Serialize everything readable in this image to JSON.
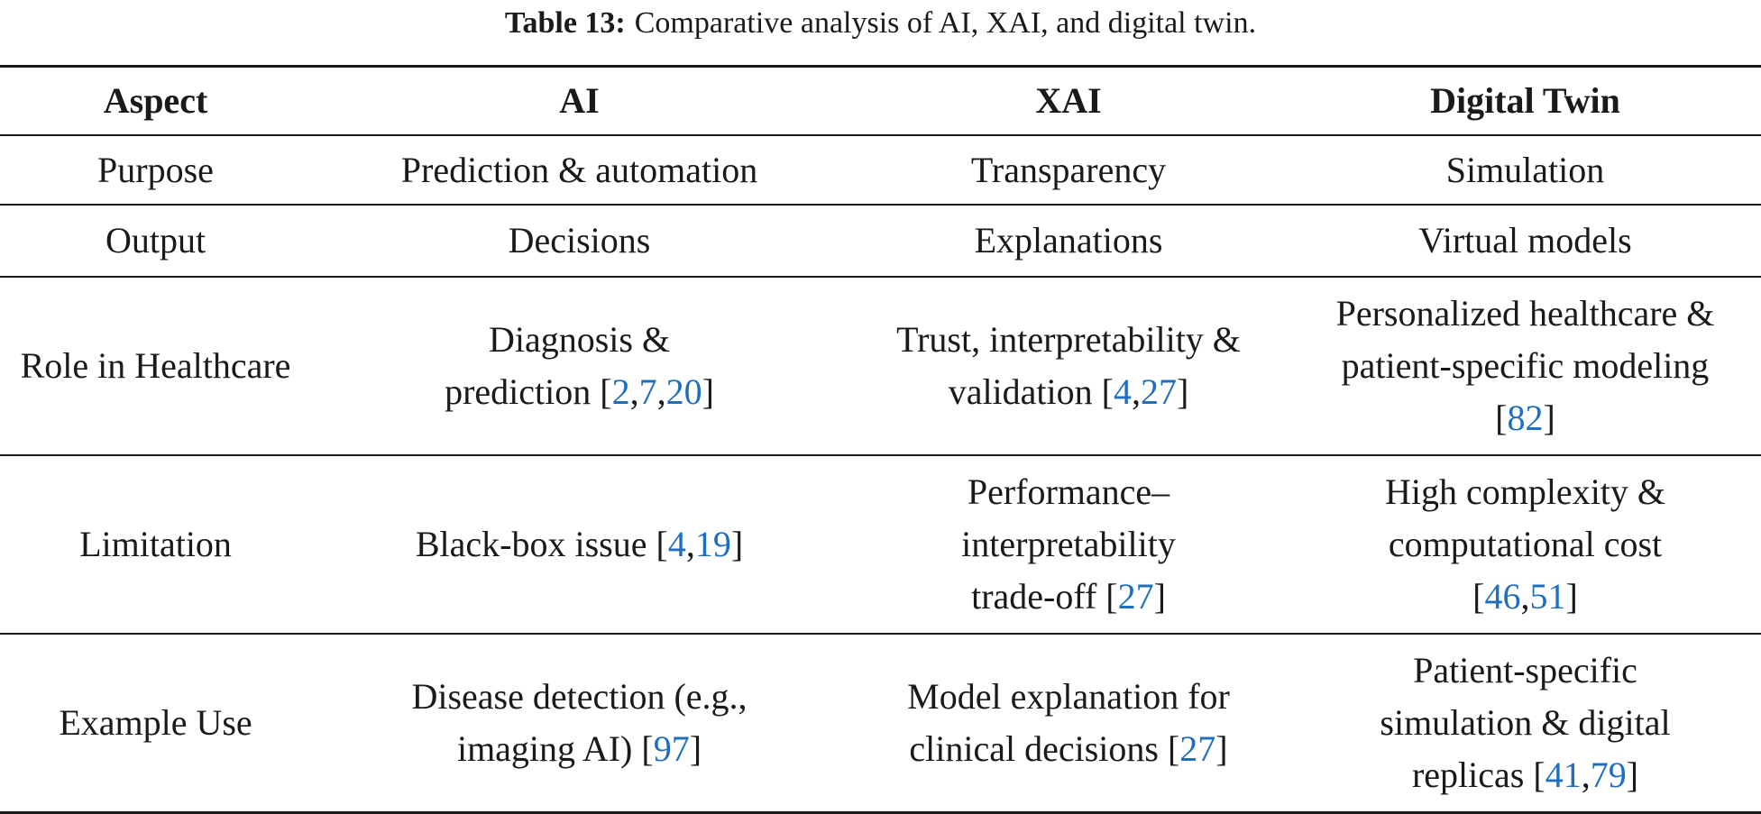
{
  "caption": {
    "label": "Table 13:",
    "text": "Comparative analysis of AI, XAI, and digital twin."
  },
  "colors": {
    "text": "#1a1a1a",
    "reference_link": "#1f6fc0"
  },
  "table": {
    "headers": [
      "Aspect",
      "AI",
      "XAI",
      "Digital Twin"
    ],
    "rows": [
      {
        "aspect": "Purpose",
        "ai": {
          "text": "Prediction & automation",
          "refs": []
        },
        "xai": {
          "text": "Transparency",
          "refs": []
        },
        "dt": {
          "text": "Simulation",
          "refs": []
        }
      },
      {
        "aspect": "Output",
        "ai": {
          "text": "Decisions",
          "refs": []
        },
        "xai": {
          "text": "Explanations",
          "refs": []
        },
        "dt": {
          "text": "Virtual models",
          "refs": []
        }
      },
      {
        "aspect": "Role in Healthcare",
        "ai": {
          "text": "Diagnosis & prediction",
          "refs": [
            "2",
            "7",
            "20"
          ]
        },
        "xai": {
          "text": "Trust, interpretability & validation",
          "refs": [
            "4",
            "27"
          ]
        },
        "dt": {
          "text": "Personalized healthcare & patient-specific modeling",
          "refs": [
            "82"
          ]
        }
      },
      {
        "aspect": "Limitation",
        "ai": {
          "text": "Black-box issue",
          "refs": [
            "4",
            "19"
          ]
        },
        "xai": {
          "text": "Performance–interpretability trade-off",
          "refs": [
            "27"
          ]
        },
        "dt": {
          "text": "High complexity & computational cost",
          "refs": [
            "46",
            "51"
          ]
        }
      },
      {
        "aspect": "Example Use",
        "ai": {
          "text": "Disease detection (e.g., imaging AI)",
          "refs": [
            "97"
          ]
        },
        "xai": {
          "text": "Model explanation for clinical decisions",
          "refs": [
            "27"
          ]
        },
        "dt": {
          "text": "Patient-specific simulation & digital replicas",
          "refs": [
            "41",
            "79"
          ]
        }
      }
    ]
  }
}
